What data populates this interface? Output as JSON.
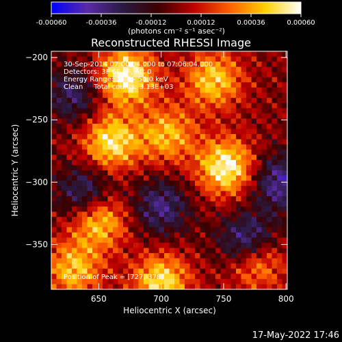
{
  "colorbar": {
    "tick_labels": [
      "-0.00060",
      "-0.00036",
      "-0.00012",
      "0.00012",
      "0.00036",
      "0.00060"
    ],
    "tick_values": [
      -0.0006,
      -0.00036,
      -0.00012,
      0.00012,
      0.00036,
      0.0006
    ],
    "range": [
      -0.0006,
      0.0006
    ],
    "unit_label": "(photons cm⁻² s⁻¹ asec⁻²)",
    "colors": [
      "#0000ff",
      "#5a2aa8",
      "#2a1a40",
      "#3a0000",
      "#c00000",
      "#ff6000",
      "#ffd000",
      "#ffffff"
    ]
  },
  "chart_data": {
    "type": "heatmap",
    "title": "Reconstructed RHESSI Image",
    "xlabel": "Heliocentric X (arcsec)",
    "ylabel": "Heliocentric Y (arcsec)",
    "xlim": [
      612,
      801
    ],
    "ylim": [
      -386,
      -195
    ],
    "xticks": [
      650,
      700,
      750,
      800
    ],
    "yticks": [
      -200,
      -250,
      -300,
      -350
    ],
    "xtick_labels": [
      "650",
      "700",
      "750",
      "800"
    ],
    "ytick_labels": [
      "−200",
      "−250",
      "−300",
      "−350"
    ],
    "annotations": [
      "30-Sep-2014 07:00:04.000 to 07:06:04.000",
      "Detectors: 3F 6F 9F, Att 0",
      "Energy Range: 25.0 - 50.0 keV",
      "Clean     Total counts: 3.13E+03"
    ],
    "peak_label": "Position of Peak = [727,-378]",
    "peak": [
      727,
      -378
    ],
    "sources": [
      {
        "x": 672,
        "y": -215,
        "amp": 0.0006
      },
      {
        "x": 742,
        "y": -218,
        "amp": 0.00045
      },
      {
        "x": 660,
        "y": -268,
        "amp": 0.00052
      },
      {
        "x": 705,
        "y": -262,
        "amp": 0.0004
      },
      {
        "x": 752,
        "y": -288,
        "amp": 0.00058
      },
      {
        "x": 650,
        "y": -330,
        "amp": 0.0005
      },
      {
        "x": 775,
        "y": -362,
        "amp": 0.00055
      },
      {
        "x": 700,
        "y": -380,
        "amp": 0.0005
      },
      {
        "x": 630,
        "y": -370,
        "amp": 0.00042
      }
    ],
    "negative_regions": [
      {
        "x": 770,
        "y": -350,
        "amp": -0.0006
      },
      {
        "x": 640,
        "y": -310,
        "amp": -0.0004
      },
      {
        "x": 700,
        "y": -320,
        "amp": -0.00035
      },
      {
        "x": 795,
        "y": -300,
        "amp": -0.0004
      },
      {
        "x": 630,
        "y": -230,
        "amp": -0.0003
      }
    ]
  },
  "footer": {
    "timestamp": "17-May-2022 17:46"
  }
}
